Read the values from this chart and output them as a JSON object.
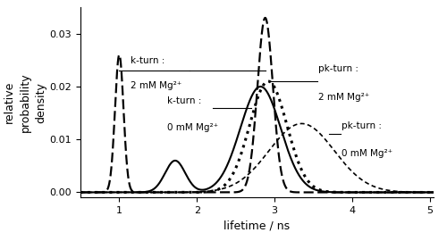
{
  "xlabel": "lifetime / ns",
  "ylabel": "relative\nprobability\ndensity",
  "xlim": [
    0.5,
    5.05
  ],
  "ylim": [
    -0.001,
    0.035
  ],
  "yticks": [
    0,
    0.01,
    0.02,
    0.03
  ],
  "xticks": [
    1,
    2,
    3,
    4,
    5
  ],
  "curves": {
    "k_turn_2mM": {
      "style": "dashed",
      "lw": 1.6,
      "components": [
        {
          "mean": 1.0,
          "std": 0.055,
          "amp": 0.026
        },
        {
          "mean": 2.88,
          "std": 0.1,
          "amp": 0.033
        }
      ]
    },
    "k_turn_0mM": {
      "style": "solid",
      "lw": 1.5,
      "components": [
        {
          "mean": 1.72,
          "std": 0.13,
          "amp": 0.006
        },
        {
          "mean": 2.82,
          "std": 0.26,
          "amp": 0.02
        }
      ]
    },
    "pk_turn_2mM": {
      "style": "dotted",
      "lw": 2.2,
      "components": [
        {
          "mean": 2.92,
          "std": 0.24,
          "amp": 0.021
        }
      ]
    },
    "pk_turn_0mM": {
      "style": "dashed_fine",
      "lw": 1.2,
      "components": [
        {
          "mean": 3.35,
          "std": 0.42,
          "amp": 0.013
        }
      ]
    }
  }
}
